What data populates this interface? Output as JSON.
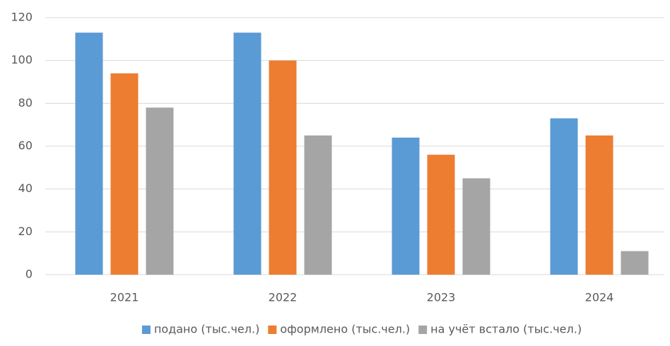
{
  "chart_data": {
    "type": "bar",
    "categories": [
      "2021",
      "2022",
      "2023",
      "2024"
    ],
    "series": [
      {
        "name": "подано (тыс.чел.)",
        "color": "#5b9bd5",
        "values": [
          113,
          113,
          64,
          73
        ]
      },
      {
        "name": "оформлено (тыс.чел.)",
        "color": "#ed7d31",
        "values": [
          94,
          100,
          56,
          65
        ]
      },
      {
        "name": "на учёт встало (тыс.чел.)",
        "color": "#a5a5a5",
        "values": [
          78,
          65,
          45,
          11
        ]
      }
    ],
    "ylim": [
      0,
      120
    ],
    "yticks": [
      0,
      20,
      40,
      60,
      80,
      100,
      120
    ],
    "grid": true,
    "legend": "bottom"
  }
}
